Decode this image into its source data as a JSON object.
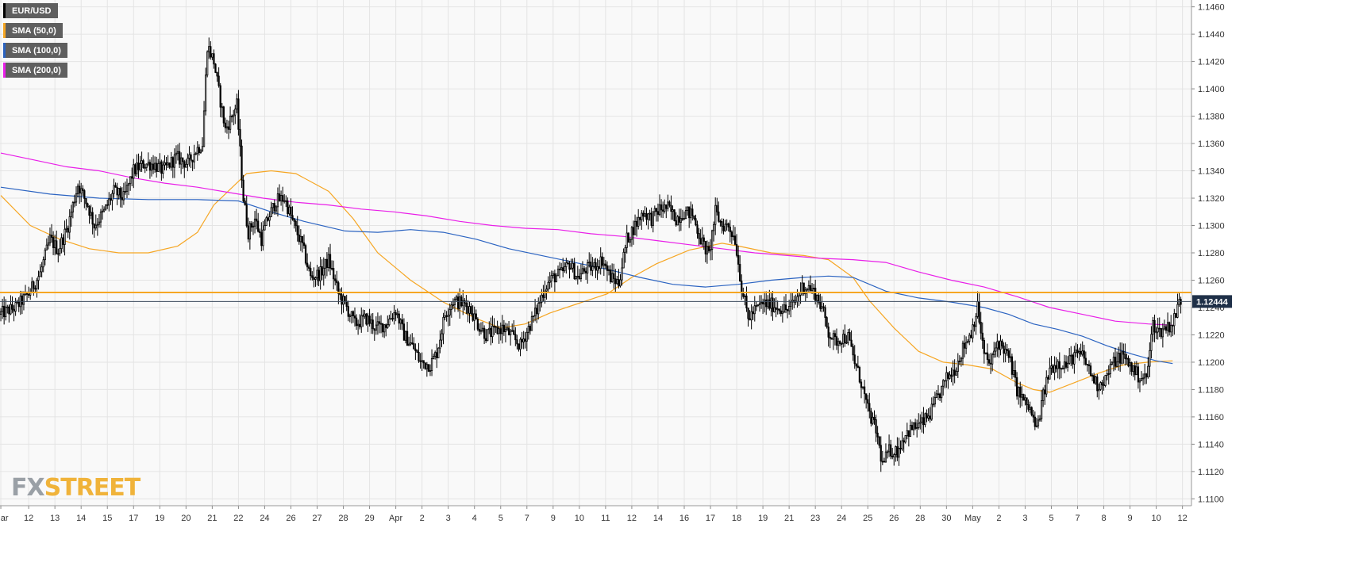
{
  "chart_data": {
    "type": "candlestick",
    "instrument": "EUR/USD",
    "last_price": "1.12444",
    "resistance_level": 1.1251,
    "ylim": [
      1.1095,
      1.1465
    ],
    "y_ticks": [
      "1.1460",
      "1.1440",
      "1.1420",
      "1.1400",
      "1.1380",
      "1.1360",
      "1.1340",
      "1.1320",
      "1.1300",
      "1.1280",
      "1.1260",
      "1.1240",
      "1.1220",
      "1.1200",
      "1.1180",
      "1.1160",
      "1.1140",
      "1.1120",
      "1.1100"
    ],
    "x_ticks": [
      {
        "label": "Mar",
        "i": 0
      },
      {
        "label": "12",
        "i": 17
      },
      {
        "label": "13",
        "i": 33
      },
      {
        "label": "14",
        "i": 49
      },
      {
        "label": "15",
        "i": 65
      },
      {
        "label": "17",
        "i": 81
      },
      {
        "label": "19",
        "i": 97
      },
      {
        "label": "20",
        "i": 113
      },
      {
        "label": "21",
        "i": 129
      },
      {
        "label": "22",
        "i": 145
      },
      {
        "label": "24",
        "i": 161
      },
      {
        "label": "26",
        "i": 177
      },
      {
        "label": "27",
        "i": 193
      },
      {
        "label": "28",
        "i": 209
      },
      {
        "label": "29",
        "i": 225
      },
      {
        "label": "Apr",
        "i": 241
      },
      {
        "label": "2",
        "i": 257
      },
      {
        "label": "3",
        "i": 273
      },
      {
        "label": "4",
        "i": 289
      },
      {
        "label": "5",
        "i": 305
      },
      {
        "label": "7",
        "i": 321
      },
      {
        "label": "9",
        "i": 337
      },
      {
        "label": "10",
        "i": 353
      },
      {
        "label": "11",
        "i": 369
      },
      {
        "label": "12",
        "i": 385
      },
      {
        "label": "14",
        "i": 401
      },
      {
        "label": "16",
        "i": 417
      },
      {
        "label": "17",
        "i": 433
      },
      {
        "label": "18",
        "i": 449
      },
      {
        "label": "19",
        "i": 465
      },
      {
        "label": "21",
        "i": 481
      },
      {
        "label": "23",
        "i": 497
      },
      {
        "label": "24",
        "i": 513
      },
      {
        "label": "25",
        "i": 529
      },
      {
        "label": "26",
        "i": 545
      },
      {
        "label": "28",
        "i": 561
      },
      {
        "label": "30",
        "i": 577
      },
      {
        "label": "May",
        "i": 593
      },
      {
        "label": "2",
        "i": 609
      },
      {
        "label": "3",
        "i": 625
      },
      {
        "label": "5",
        "i": 641
      },
      {
        "label": "7",
        "i": 657
      },
      {
        "label": "8",
        "i": 673
      },
      {
        "label": "9",
        "i": 689
      },
      {
        "label": "10",
        "i": 705
      },
      {
        "label": "12",
        "i": 721
      }
    ],
    "total_candles": 727,
    "series": [
      {
        "name": "EUR/USD",
        "color": "#000000"
      },
      {
        "name": "SMA (50,0)",
        "color": "#f6a623",
        "points": [
          [
            0,
            1.1322
          ],
          [
            18,
            1.13
          ],
          [
            36,
            1.129
          ],
          [
            54,
            1.1283
          ],
          [
            72,
            1.128
          ],
          [
            90,
            1.128
          ],
          [
            108,
            1.1285
          ],
          [
            120,
            1.1295
          ],
          [
            130,
            1.1315
          ],
          [
            150,
            1.1338
          ],
          [
            165,
            1.134
          ],
          [
            180,
            1.1338
          ],
          [
            200,
            1.1325
          ],
          [
            215,
            1.1305
          ],
          [
            230,
            1.128
          ],
          [
            250,
            1.126
          ],
          [
            270,
            1.1244
          ],
          [
            290,
            1.1232
          ],
          [
            305,
            1.1225
          ],
          [
            320,
            1.1228
          ],
          [
            335,
            1.1236
          ],
          [
            350,
            1.1242
          ],
          [
            370,
            1.125
          ],
          [
            385,
            1.1262
          ],
          [
            400,
            1.1272
          ],
          [
            420,
            1.1282
          ],
          [
            440,
            1.1287
          ],
          [
            450,
            1.1285
          ],
          [
            470,
            1.128
          ],
          [
            490,
            1.1278
          ],
          [
            505,
            1.1275
          ],
          [
            520,
            1.1262
          ],
          [
            530,
            1.1245
          ],
          [
            545,
            1.1225
          ],
          [
            560,
            1.1208
          ],
          [
            575,
            1.12
          ],
          [
            590,
            1.1198
          ],
          [
            605,
            1.1195
          ],
          [
            620,
            1.1185
          ],
          [
            630,
            1.118
          ],
          [
            640,
            1.1178
          ],
          [
            655,
            1.1185
          ],
          [
            670,
            1.1192
          ],
          [
            685,
            1.1198
          ],
          [
            700,
            1.12
          ],
          [
            715,
            1.1201
          ]
        ]
      },
      {
        "name": "SMA (100,0)",
        "color": "#2b63c1",
        "points": [
          [
            0,
            1.1328
          ],
          [
            30,
            1.1323
          ],
          [
            60,
            1.132
          ],
          [
            90,
            1.1319
          ],
          [
            120,
            1.1319
          ],
          [
            145,
            1.1318
          ],
          [
            165,
            1.131
          ],
          [
            185,
            1.1303
          ],
          [
            210,
            1.1296
          ],
          [
            230,
            1.1295
          ],
          [
            250,
            1.1297
          ],
          [
            270,
            1.1295
          ],
          [
            290,
            1.129
          ],
          [
            310,
            1.1283
          ],
          [
            330,
            1.1278
          ],
          [
            350,
            1.1273
          ],
          [
            370,
            1.1268
          ],
          [
            390,
            1.1262
          ],
          [
            410,
            1.1257
          ],
          [
            430,
            1.1255
          ],
          [
            450,
            1.1257
          ],
          [
            470,
            1.126
          ],
          [
            490,
            1.1262
          ],
          [
            505,
            1.1263
          ],
          [
            520,
            1.1262
          ],
          [
            540,
            1.1252
          ],
          [
            560,
            1.1247
          ],
          [
            580,
            1.1244
          ],
          [
            600,
            1.124
          ],
          [
            615,
            1.1235
          ],
          [
            630,
            1.1228
          ],
          [
            645,
            1.1224
          ],
          [
            660,
            1.1219
          ],
          [
            675,
            1.1212
          ],
          [
            690,
            1.1206
          ],
          [
            705,
            1.1201
          ],
          [
            715,
            1.1199
          ]
        ]
      },
      {
        "name": "SMA (200,0)",
        "color": "#e91fe8",
        "points": [
          [
            0,
            1.1353
          ],
          [
            20,
            1.1348
          ],
          [
            40,
            1.1343
          ],
          [
            60,
            1.134
          ],
          [
            80,
            1.1335
          ],
          [
            100,
            1.1331
          ],
          [
            120,
            1.1328
          ],
          [
            140,
            1.1324
          ],
          [
            160,
            1.132
          ],
          [
            180,
            1.1317
          ],
          [
            200,
            1.1315
          ],
          [
            220,
            1.1312
          ],
          [
            240,
            1.131
          ],
          [
            260,
            1.1307
          ],
          [
            280,
            1.1303
          ],
          [
            300,
            1.13
          ],
          [
            320,
            1.1298
          ],
          [
            340,
            1.1297
          ],
          [
            360,
            1.1294
          ],
          [
            380,
            1.1292
          ],
          [
            400,
            1.1289
          ],
          [
            420,
            1.1286
          ],
          [
            440,
            1.1283
          ],
          [
            460,
            1.128
          ],
          [
            480,
            1.1278
          ],
          [
            500,
            1.1276
          ],
          [
            520,
            1.1275
          ],
          [
            540,
            1.1273
          ],
          [
            560,
            1.1266
          ],
          [
            580,
            1.126
          ],
          [
            600,
            1.1255
          ],
          [
            620,
            1.1248
          ],
          [
            640,
            1.124
          ],
          [
            660,
            1.1235
          ],
          [
            680,
            1.123
          ],
          [
            700,
            1.1228
          ],
          [
            715,
            1.1227
          ]
        ]
      }
    ],
    "path": [
      [
        0,
        1.1235
      ],
      [
        10,
        1.124
      ],
      [
        18,
        1.125
      ],
      [
        25,
        1.1265
      ],
      [
        31,
        1.129
      ],
      [
        36,
        1.1282
      ],
      [
        42,
        1.13
      ],
      [
        48,
        1.133
      ],
      [
        54,
        1.1315
      ],
      [
        58,
        1.13
      ],
      [
        64,
        1.131
      ],
      [
        70,
        1.1325
      ],
      [
        76,
        1.132
      ],
      [
        82,
        1.134
      ],
      [
        88,
        1.1345
      ],
      [
        94,
        1.1345
      ],
      [
        100,
        1.134
      ],
      [
        108,
        1.135
      ],
      [
        115,
        1.1345
      ],
      [
        120,
        1.1355
      ],
      [
        124,
        1.136
      ],
      [
        127,
        1.1432
      ],
      [
        131,
        1.142
      ],
      [
        134,
        1.1398
      ],
      [
        138,
        1.137
      ],
      [
        142,
        1.138
      ],
      [
        145,
        1.1388
      ],
      [
        149,
        1.132
      ],
      [
        152,
        1.1295
      ],
      [
        156,
        1.1305
      ],
      [
        160,
        1.129
      ],
      [
        164,
        1.1305
      ],
      [
        169,
        1.1318
      ],
      [
        174,
        1.132
      ],
      [
        180,
        1.13
      ],
      [
        185,
        1.1285
      ],
      [
        190,
        1.1262
      ],
      [
        196,
        1.1265
      ],
      [
        201,
        1.1275
      ],
      [
        207,
        1.125
      ],
      [
        212,
        1.124
      ],
      [
        217,
        1.1228
      ],
      [
        224,
        1.1232
      ],
      [
        230,
        1.1225
      ],
      [
        236,
        1.1228
      ],
      [
        242,
        1.1238
      ],
      [
        247,
        1.122
      ],
      [
        253,
        1.121
      ],
      [
        257,
        1.12
      ],
      [
        263,
        1.1198
      ],
      [
        267,
        1.1207
      ],
      [
        272,
        1.1235
      ],
      [
        277,
        1.1245
      ],
      [
        282,
        1.1243
      ],
      [
        287,
        1.124
      ],
      [
        292,
        1.1228
      ],
      [
        297,
        1.122
      ],
      [
        302,
        1.1222
      ],
      [
        307,
        1.1225
      ],
      [
        312,
        1.122
      ],
      [
        318,
        1.1212
      ],
      [
        323,
        1.1225
      ],
      [
        328,
        1.1238
      ],
      [
        333,
        1.1255
      ],
      [
        338,
        1.1262
      ],
      [
        343,
        1.1265
      ],
      [
        348,
        1.1272
      ],
      [
        353,
        1.1262
      ],
      [
        358,
        1.1268
      ],
      [
        363,
        1.127
      ],
      [
        368,
        1.1275
      ],
      [
        373,
        1.1262
      ],
      [
        378,
        1.1258
      ],
      [
        383,
        1.129
      ],
      [
        388,
        1.13
      ],
      [
        393,
        1.131
      ],
      [
        398,
        1.1305
      ],
      [
        403,
        1.1312
      ],
      [
        408,
        1.1313
      ],
      [
        413,
        1.1305
      ],
      [
        418,
        1.131
      ],
      [
        423,
        1.1308
      ],
      [
        428,
        1.129
      ],
      [
        433,
        1.1278
      ],
      [
        437,
        1.131
      ],
      [
        441,
        1.13
      ],
      [
        445,
        1.13
      ],
      [
        449,
        1.129
      ],
      [
        453,
        1.1255
      ],
      [
        457,
        1.1232
      ],
      [
        461,
        1.1238
      ],
      [
        466,
        1.1243
      ],
      [
        471,
        1.1242
      ],
      [
        476,
        1.124
      ],
      [
        481,
        1.1238
      ],
      [
        486,
        1.1245
      ],
      [
        490,
        1.1255
      ],
      [
        494,
        1.1255
      ],
      [
        498,
        1.125
      ],
      [
        502,
        1.124
      ],
      [
        506,
        1.1222
      ],
      [
        510,
        1.1215
      ],
      [
        514,
        1.1218
      ],
      [
        518,
        1.1218
      ],
      [
        522,
        1.12
      ],
      [
        526,
        1.1185
      ],
      [
        530,
        1.1165
      ],
      [
        535,
        1.115
      ],
      [
        539,
        1.1125
      ],
      [
        543,
        1.1135
      ],
      [
        548,
        1.1135
      ],
      [
        553,
        1.1148
      ],
      [
        558,
        1.1152
      ],
      [
        563,
        1.1155
      ],
      [
        568,
        1.1162
      ],
      [
        573,
        1.1175
      ],
      [
        578,
        1.1188
      ],
      [
        583,
        1.1195
      ],
      [
        588,
        1.121
      ],
      [
        593,
        1.1222
      ],
      [
        597,
        1.124
      ],
      [
        601,
        1.1205
      ],
      [
        605,
        1.1198
      ],
      [
        609,
        1.1215
      ],
      [
        613,
        1.121
      ],
      [
        617,
        1.12
      ],
      [
        621,
        1.118
      ],
      [
        625,
        1.1172
      ],
      [
        629,
        1.1165
      ],
      [
        633,
        1.115
      ],
      [
        637,
        1.1175
      ],
      [
        641,
        1.1195
      ],
      [
        646,
        1.12
      ],
      [
        651,
        1.1198
      ],
      [
        656,
        1.1205
      ],
      [
        661,
        1.1205
      ],
      [
        666,
        1.1192
      ],
      [
        670,
        1.1183
      ],
      [
        675,
        1.1188
      ],
      [
        680,
        1.12
      ],
      [
        685,
        1.1205
      ],
      [
        690,
        1.1198
      ],
      [
        695,
        1.119
      ],
      [
        700,
        1.1188
      ],
      [
        704,
        1.1228
      ],
      [
        708,
        1.1222
      ],
      [
        712,
        1.1226
      ],
      [
        716,
        1.1228
      ],
      [
        720,
        1.1244
      ]
    ]
  },
  "legend": [
    {
      "label": "EUR/USD",
      "color": "#000000"
    },
    {
      "label": "SMA (50,0)",
      "color": "#f6a623"
    },
    {
      "label": "SMA (100,0)",
      "color": "#2b63c1"
    },
    {
      "label": "SMA (200,0)",
      "color": "#e91fe8"
    }
  ],
  "logo": {
    "fx": "FX",
    "street": "STREET"
  }
}
